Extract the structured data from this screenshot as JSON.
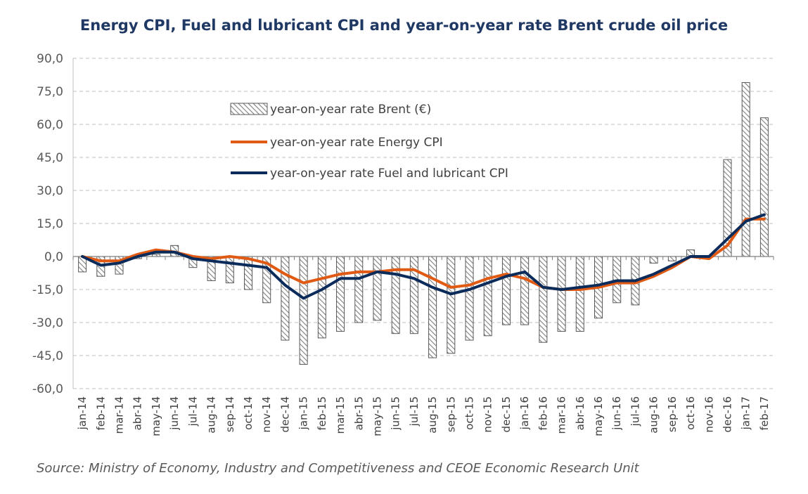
{
  "chart_data": {
    "type": "bar",
    "title": "Energy CPI, Fuel and lubricant CPI and year-on-year rate Brent crude oil price",
    "source": "Source: Ministry of Economy, Industry and Competitiveness and CEOE Economic Research Unit",
    "categories": [
      "jan-14",
      "feb-14",
      "mar-14",
      "abr-14",
      "may-14",
      "jun-14",
      "jul-14",
      "aug-14",
      "sep-14",
      "oct-14",
      "nov-14",
      "dec-14",
      "jan-15",
      "feb-15",
      "mar-15",
      "abr-15",
      "may-15",
      "jun-15",
      "jul-15",
      "aug-15",
      "sep-15",
      "oct-15",
      "nov-15",
      "dec-15",
      "jan-16",
      "feb-16",
      "mar-16",
      "abr-16",
      "may-16",
      "jun-16",
      "jul-16",
      "aug-16",
      "sep-16",
      "oct-16",
      "nov-16",
      "dec-16",
      "jan-17",
      "feb-17"
    ],
    "ylim": [
      -60,
      90
    ],
    "yticks": [
      "90,0",
      "75,0",
      "60,0",
      "45,0",
      "30,0",
      "15,0",
      "0,0",
      "-15,0",
      "-30,0",
      "-45,0",
      "-60,0"
    ],
    "ytick_values": [
      90,
      75,
      60,
      45,
      30,
      15,
      0,
      -15,
      -30,
      -45,
      -60
    ],
    "grid": true,
    "legend_position": "top-center",
    "series": [
      {
        "name": "year-on-year rate Brent (€)",
        "kind": "bar",
        "color": "#7F7F7F",
        "values": [
          -7,
          -9,
          -8,
          -1,
          1,
          5,
          -5,
          -11,
          -12,
          -15,
          -21,
          -38,
          -49,
          -37,
          -34,
          -30,
          -29,
          -35,
          -35,
          -46,
          -44,
          -38,
          -36,
          -31,
          -31,
          -39,
          -34,
          -34,
          -28,
          -21,
          -22,
          -3,
          -2,
          3,
          0,
          44,
          79,
          63
        ]
      },
      {
        "name": "year-on-year rate Energy CPI",
        "kind": "line",
        "color": "#E15A13",
        "values": [
          0,
          -2,
          -2,
          1,
          3,
          2,
          0,
          -1,
          0,
          -1,
          -3,
          -8,
          -12,
          -10,
          -8,
          -7,
          -7,
          -6,
          -6,
          -10,
          -14,
          -13,
          -10,
          -8,
          -10,
          -14,
          -15,
          -15,
          -14,
          -12,
          -12,
          -9,
          -5,
          0,
          -1,
          5,
          17,
          17
        ]
      },
      {
        "name": "year-on-year rate Fuel and lubricant CPI",
        "kind": "line",
        "color": "#0B2B5B",
        "values": [
          0,
          -4,
          -3,
          0,
          2,
          2,
          -1,
          -2,
          -3,
          -4,
          -5,
          -13,
          -19,
          -15,
          -10,
          -10,
          -7,
          -8,
          -10,
          -14,
          -17,
          -15,
          -12,
          -9,
          -7,
          -14,
          -15,
          -14,
          -13,
          -11,
          -11,
          -8,
          -4,
          0,
          0,
          8,
          16,
          19
        ]
      }
    ]
  }
}
